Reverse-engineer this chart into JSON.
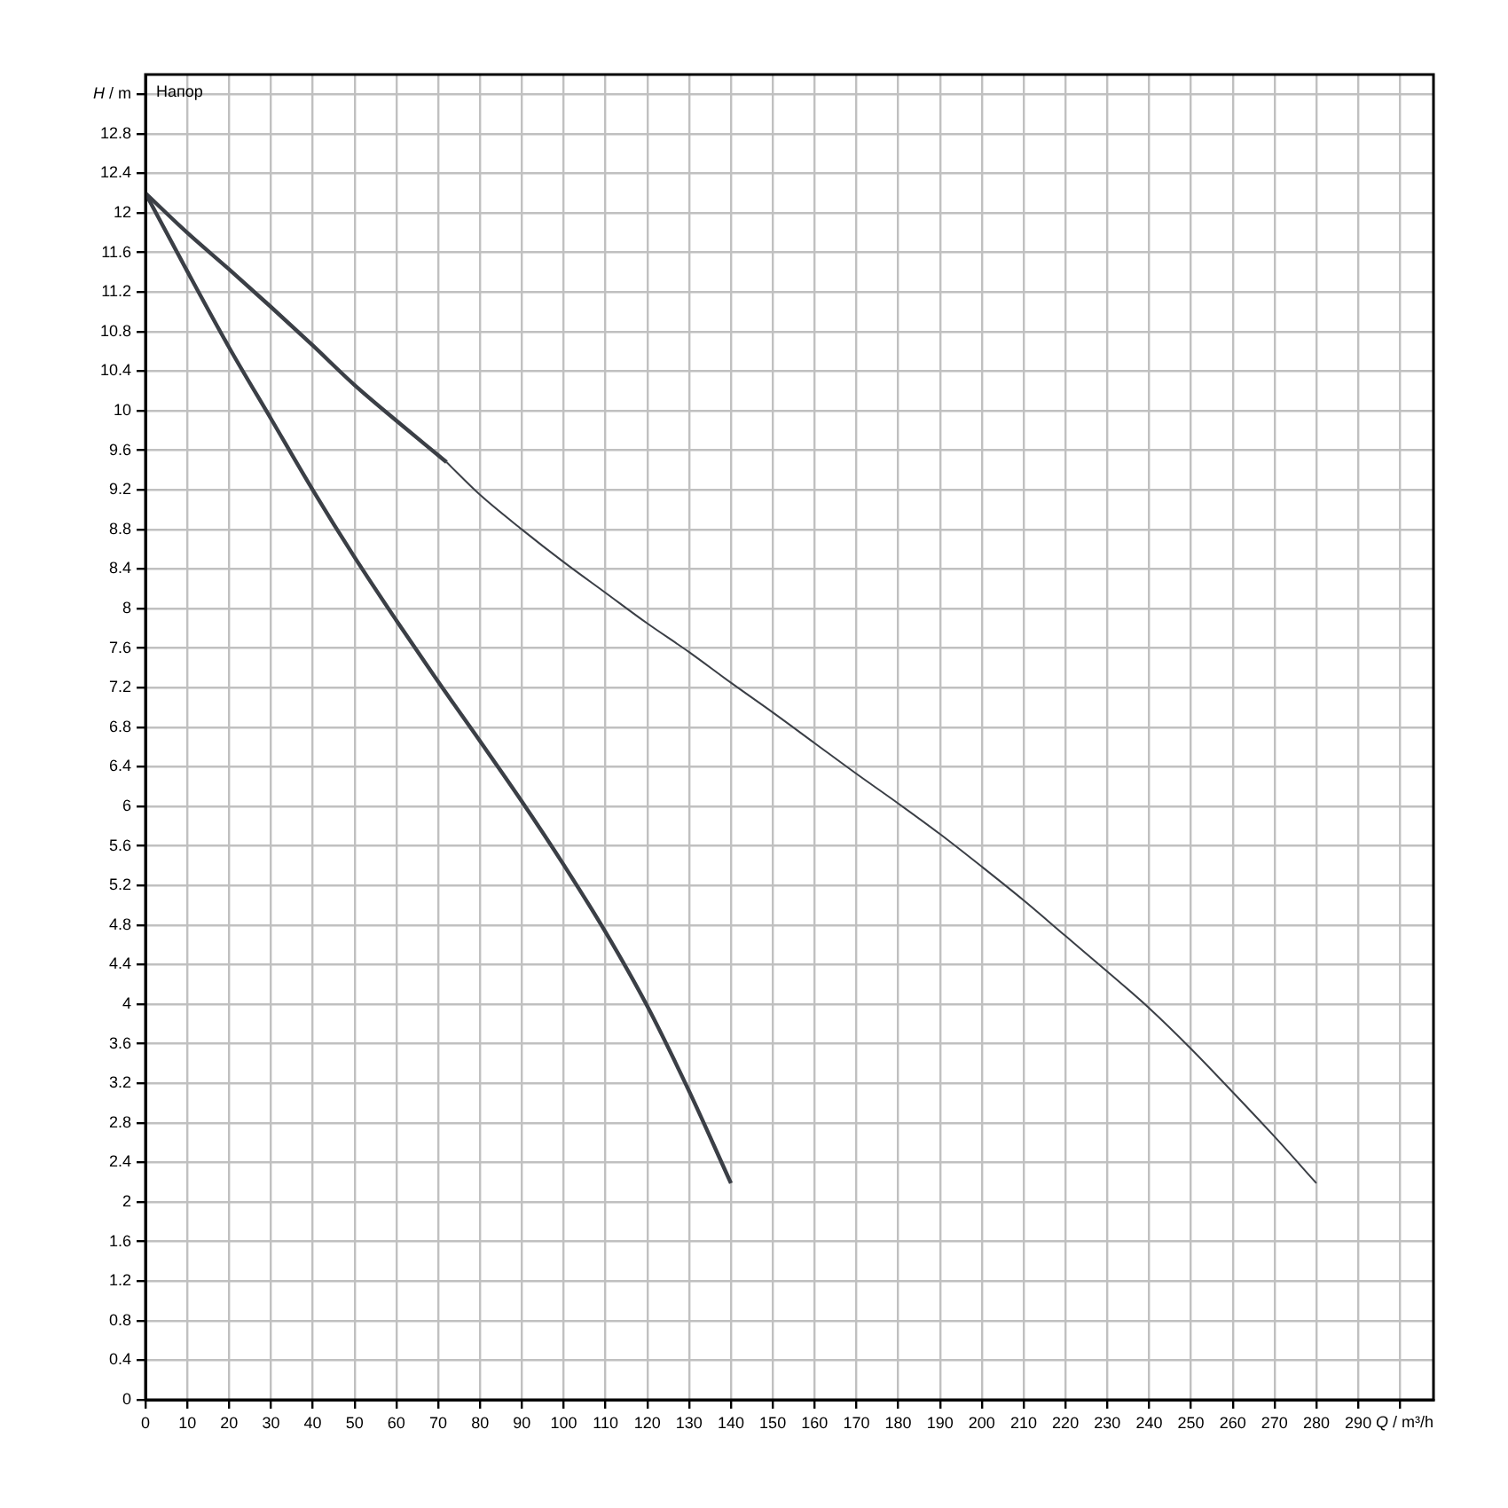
{
  "chart_data": {
    "type": "line",
    "xlabel": "Q / m³/h",
    "ylabel": "H / m",
    "annotations": [
      "Напор"
    ],
    "xlim": [
      0,
      308
    ],
    "ylim": [
      0,
      13.4
    ],
    "xticks": [
      0,
      10,
      20,
      30,
      40,
      50,
      60,
      70,
      80,
      90,
      100,
      110,
      120,
      130,
      140,
      150,
      160,
      170,
      180,
      190,
      200,
      210,
      220,
      230,
      240,
      250,
      260,
      270,
      280,
      290,
      {
        "value": 300,
        "label": null
      }
    ],
    "yticks": [
      0,
      0.4,
      0.8,
      1.2,
      1.6,
      2,
      2.4,
      2.8,
      3.2,
      3.6,
      4,
      4.4,
      4.8,
      5.2,
      5.6,
      6,
      6.4,
      6.8,
      7.2,
      7.6,
      8,
      8.4,
      8.8,
      9.2,
      9.6,
      10,
      10.4,
      10.8,
      11.2,
      11.6,
      12,
      12.4,
      12.8,
      {
        "value": 13.2,
        "label": null
      }
    ],
    "grid": true,
    "series": [
      {
        "color": "#3b3f46",
        "x": [
          0,
          10,
          20,
          30,
          40,
          50,
          60,
          70,
          80,
          90,
          100,
          110,
          120,
          130,
          140
        ],
        "values": [
          12.2,
          11.41,
          10.64,
          9.92,
          9.2,
          8.52,
          7.88,
          7.26,
          6.66,
          6.05,
          5.41,
          4.73,
          3.98,
          3.12,
          2.19
        ]
      },
      {
        "color": "#3b3f46",
        "x": [
          0,
          10,
          20,
          30,
          40,
          50,
          60,
          70,
          72
        ],
        "values": [
          12.2,
          11.8,
          11.43,
          11.05,
          10.66,
          10.26,
          9.9,
          9.55,
          9.48
        ]
      },
      {
        "color": "#3b3f46",
        "x": [
          72,
          80,
          90,
          100,
          110,
          120,
          130,
          140,
          150,
          160,
          170,
          180,
          190,
          200,
          210,
          220,
          230,
          240,
          250,
          260,
          270,
          280
        ],
        "values": [
          9.48,
          9.15,
          8.8,
          8.47,
          8.16,
          7.85,
          7.56,
          7.25,
          6.95,
          6.64,
          6.33,
          6.03,
          5.72,
          5.39,
          5.05,
          4.69,
          4.33,
          3.96,
          3.55,
          3.11,
          2.66,
          2.19
        ]
      }
    ]
  }
}
